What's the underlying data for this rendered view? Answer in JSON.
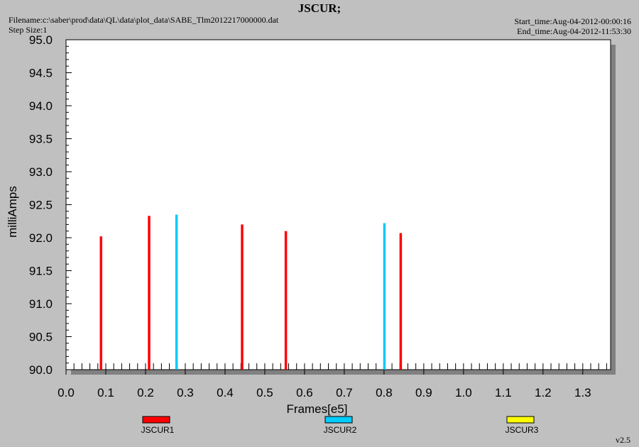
{
  "header": {
    "title": "JSCUR;",
    "filename": "Filename:c:\\saber\\prod\\data\\QL\\data\\plot_data\\SABE_Tlm2012217000000.dat",
    "step_size": "Step Size:1",
    "start_time": "Start_time:Aug-04-2012-00:00:16",
    "end_time": "End_time:Aug-04-2012-11:53:30"
  },
  "footer": {
    "version": "v2.5"
  },
  "chart_data": {
    "type": "bar",
    "title": "JSCUR;",
    "xlabel": "Frames[e5]",
    "ylabel": "milliAmps",
    "xlim": [
      0.0,
      1.37
    ],
    "ylim": [
      90.0,
      95.0
    ],
    "x_ticks": [
      "0.0",
      "0.1",
      "0.2",
      "0.3",
      "0.4",
      "0.5",
      "0.6",
      "0.7",
      "0.8",
      "0.9",
      "1.0",
      "1.1",
      "1.2",
      "1.3"
    ],
    "y_ticks": [
      "90.0",
      "90.5",
      "91.0",
      "91.5",
      "92.0",
      "92.5",
      "93.0",
      "93.5",
      "94.0",
      "94.5",
      "95.0"
    ],
    "grid": false,
    "legend_position": "bottom",
    "series": [
      {
        "name": "JSCUR1",
        "color": "#ff0000",
        "points": [
          {
            "x": 0.088,
            "y": 92.02
          },
          {
            "x": 0.209,
            "y": 92.33
          },
          {
            "x": 0.443,
            "y": 92.2
          },
          {
            "x": 0.553,
            "y": 92.1
          },
          {
            "x": 0.842,
            "y": 92.07
          }
        ]
      },
      {
        "name": "JSCUR2",
        "color": "#00ccff",
        "points": [
          {
            "x": 0.278,
            "y": 92.35
          },
          {
            "x": 0.801,
            "y": 92.22
          }
        ]
      },
      {
        "name": "JSCUR3",
        "color": "#ffff00",
        "points": []
      }
    ]
  }
}
